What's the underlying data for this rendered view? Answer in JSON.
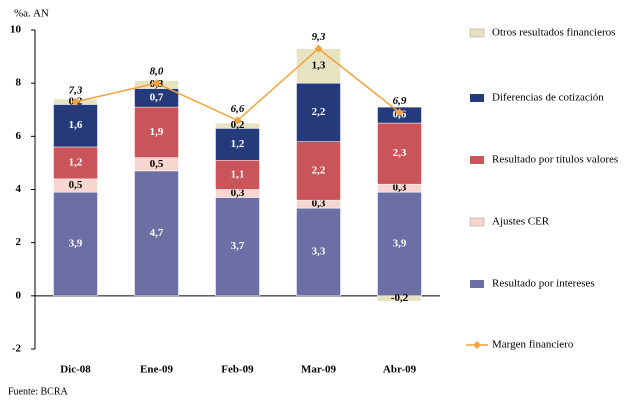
{
  "chart_data": {
    "type": "stacked-bar-line",
    "y_axis_label": "%a. AN",
    "source": "Fuente: BCRA",
    "categories": [
      "Dic-08",
      "Ene-09",
      "Feb-09",
      "Mar-09",
      "Abr-09"
    ],
    "series": [
      {
        "name": "Resultado por intereses",
        "color": "#6b6fa3",
        "values": [
          3.9,
          4.7,
          3.7,
          3.3,
          3.9
        ],
        "value_labels": [
          "3,9",
          "4,7",
          "3,7",
          "3,3",
          "3,9"
        ]
      },
      {
        "name": "Ajustes CER",
        "color": "#f8d6d0",
        "values": [
          0.5,
          0.5,
          0.3,
          0.3,
          0.3
        ],
        "value_labels": [
          "0,5",
          "0,5",
          "0,3",
          "0,3",
          "0,3"
        ]
      },
      {
        "name": "Resultado por títulos valores",
        "color": "#c9555a",
        "values": [
          1.2,
          1.9,
          1.1,
          2.2,
          2.3
        ],
        "value_labels": [
          "1,2",
          "1,9",
          "1,1",
          "2,2",
          "2,3"
        ]
      },
      {
        "name": "Diferencias de cotización",
        "color": "#253a7a",
        "values": [
          1.6,
          0.7,
          1.2,
          2.2,
          0.6
        ],
        "value_labels": [
          "1,6",
          "0,7",
          "1,2",
          "2,2",
          "0,6"
        ]
      },
      {
        "name": "Otros resultados financieros",
        "color": "#e7e3c0",
        "values": [
          0.2,
          0.3,
          0.2,
          1.3,
          -0.2
        ],
        "value_labels": [
          "0,2",
          "0,3",
          "0,2",
          "1,3",
          "-0,2"
        ]
      }
    ],
    "line": {
      "name": "Margen financiero",
      "color": "#f4a23c",
      "values": [
        7.3,
        8.0,
        6.6,
        9.3,
        6.9
      ],
      "value_labels": [
        "7,3",
        "8,0",
        "6,6",
        "9,3",
        "6,9"
      ]
    },
    "legend_order": [
      4,
      3,
      2,
      1,
      0
    ],
    "ylim": [
      -2,
      10
    ],
    "yticks": [
      -2,
      0,
      2,
      4,
      6,
      8,
      10
    ]
  }
}
